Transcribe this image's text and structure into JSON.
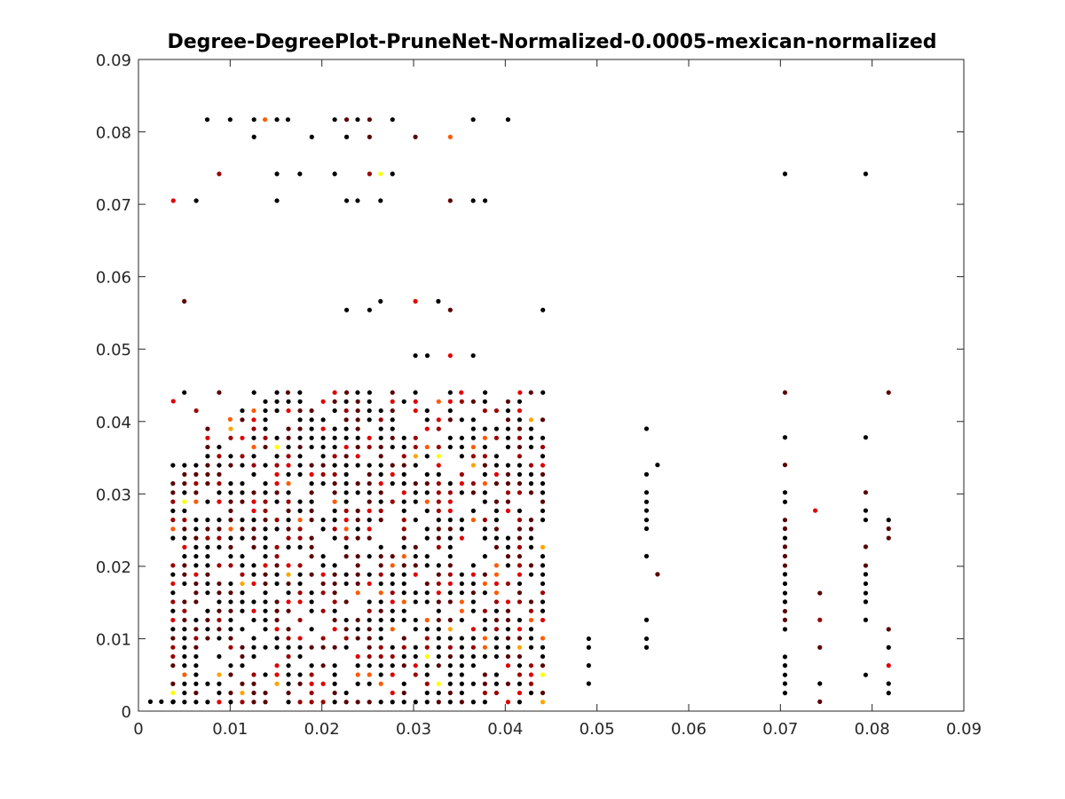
{
  "chart_data": {
    "type": "scatter",
    "title": "Degree-DegreePlot-PruneNet-Normalized-0.0005-mexican-normalized",
    "xlabel": "",
    "ylabel": "",
    "xlim": [
      0,
      0.09
    ],
    "ylim": [
      0,
      0.09
    ],
    "xticks": [
      "0",
      "0.01",
      "0.02",
      "0.03",
      "0.04",
      "0.05",
      "0.06",
      "0.07",
      "0.08",
      "0.09"
    ],
    "yticks": [
      "0",
      "0.01",
      "0.02",
      "0.03",
      "0.04",
      "0.05",
      "0.06",
      "0.07",
      "0.08",
      "0.09"
    ],
    "grid": false,
    "palette": [
      "#000000",
      "#5a0000",
      "#9a0000",
      "#e00000",
      "#ff5a00",
      "#ffa500",
      "#ffff00"
    ],
    "points": [
      [
        0.0075,
        0.0817,
        0
      ],
      [
        0.01,
        0.0817,
        0
      ],
      [
        0.0126,
        0.0817,
        0
      ],
      [
        0.0138,
        0.0817,
        4
      ],
      [
        0.0151,
        0.0817,
        0
      ],
      [
        0.0163,
        0.0817,
        0
      ],
      [
        0.0214,
        0.0817,
        0
      ],
      [
        0.0227,
        0.0817,
        1
      ],
      [
        0.0239,
        0.0817,
        0
      ],
      [
        0.0252,
        0.0817,
        1
      ],
      [
        0.0277,
        0.0817,
        0
      ],
      [
        0.0365,
        0.0817,
        0
      ],
      [
        0.0403,
        0.0817,
        0
      ],
      [
        0.0126,
        0.0793,
        0
      ],
      [
        0.0189,
        0.0793,
        0
      ],
      [
        0.0227,
        0.0793,
        0
      ],
      [
        0.0252,
        0.0793,
        1
      ],
      [
        0.0302,
        0.0793,
        1
      ],
      [
        0.034,
        0.0793,
        4
      ],
      [
        0.0088,
        0.0742,
        2
      ],
      [
        0.0151,
        0.0742,
        0
      ],
      [
        0.0176,
        0.0742,
        0
      ],
      [
        0.0214,
        0.0742,
        0
      ],
      [
        0.0252,
        0.0742,
        2
      ],
      [
        0.0264,
        0.0742,
        6
      ],
      [
        0.0277,
        0.0742,
        0
      ],
      [
        0.0705,
        0.0742,
        0
      ],
      [
        0.0793,
        0.0742,
        0
      ],
      [
        0.0038,
        0.0705,
        3
      ],
      [
        0.0063,
        0.0705,
        0
      ],
      [
        0.0151,
        0.0705,
        0
      ],
      [
        0.0227,
        0.0705,
        0
      ],
      [
        0.0239,
        0.0705,
        0
      ],
      [
        0.0264,
        0.0705,
        0
      ],
      [
        0.034,
        0.0705,
        1
      ],
      [
        0.0365,
        0.0705,
        0
      ],
      [
        0.0378,
        0.0705,
        0
      ],
      [
        0.005,
        0.0566,
        1
      ],
      [
        0.0227,
        0.0554,
        0
      ],
      [
        0.0252,
        0.0554,
        0
      ],
      [
        0.0264,
        0.0566,
        0
      ],
      [
        0.0302,
        0.0566,
        3
      ],
      [
        0.0327,
        0.0566,
        0
      ],
      [
        0.034,
        0.0554,
        1
      ],
      [
        0.0441,
        0.0554,
        0
      ],
      [
        0.0302,
        0.0491,
        0
      ],
      [
        0.0315,
        0.0491,
        0
      ],
      [
        0.034,
        0.0491,
        3
      ],
      [
        0.0365,
        0.0491,
        0
      ],
      [
        0.005,
        0.044,
        0
      ],
      [
        0.0088,
        0.044,
        1
      ],
      [
        0.0126,
        0.044,
        0
      ],
      [
        0.0151,
        0.044,
        0
      ],
      [
        0.0163,
        0.044,
        1
      ],
      [
        0.0176,
        0.044,
        0
      ],
      [
        0.0214,
        0.044,
        3
      ],
      [
        0.0227,
        0.044,
        1
      ],
      [
        0.0239,
        0.044,
        0
      ],
      [
        0.0252,
        0.044,
        0
      ],
      [
        0.0277,
        0.044,
        1
      ],
      [
        0.0302,
        0.044,
        0
      ],
      [
        0.034,
        0.044,
        0
      ],
      [
        0.0352,
        0.044,
        3
      ],
      [
        0.0378,
        0.044,
        0
      ],
      [
        0.0416,
        0.044,
        3
      ],
      [
        0.0428,
        0.044,
        1
      ],
      [
        0.0441,
        0.044,
        0
      ],
      [
        0.0705,
        0.044,
        1
      ],
      [
        0.0818,
        0.044,
        1
      ],
      [
        0.0038,
        0.0428,
        3
      ],
      [
        0.0063,
        0.0415,
        2
      ],
      [
        0.01,
        0.0403,
        4
      ],
      [
        0.0738,
        0.0277,
        3
      ],
      [
        0.0743,
        0.0163,
        1
      ],
      [
        0.0743,
        0.0126,
        2
      ],
      [
        0.0743,
        0.0088,
        1
      ],
      [
        0.0743,
        0.0038,
        0
      ],
      [
        0.0743,
        0.0013,
        1
      ],
      [
        0.0554,
        0.039,
        0
      ],
      [
        0.0554,
        0.0327,
        0
      ],
      [
        0.0554,
        0.0302,
        0
      ],
      [
        0.0554,
        0.0289,
        0
      ],
      [
        0.0554,
        0.0277,
        0
      ],
      [
        0.0554,
        0.0264,
        0
      ],
      [
        0.0554,
        0.0252,
        0
      ],
      [
        0.0554,
        0.0214,
        0
      ],
      [
        0.0566,
        0.0189,
        1
      ],
      [
        0.0566,
        0.034,
        0
      ],
      [
        0.0554,
        0.0126,
        0
      ],
      [
        0.0554,
        0.01,
        0
      ],
      [
        0.0554,
        0.0088,
        0
      ],
      [
        0.0491,
        0.01,
        0
      ],
      [
        0.0491,
        0.0088,
        0
      ],
      [
        0.0491,
        0.0063,
        0
      ],
      [
        0.0491,
        0.0038,
        0
      ],
      [
        0.0705,
        0.0378,
        0
      ],
      [
        0.0705,
        0.034,
        1
      ],
      [
        0.0705,
        0.0302,
        0
      ],
      [
        0.0705,
        0.0289,
        0
      ],
      [
        0.0705,
        0.0264,
        1
      ],
      [
        0.0705,
        0.0252,
        1
      ],
      [
        0.0705,
        0.0239,
        0
      ],
      [
        0.0705,
        0.0227,
        1
      ],
      [
        0.0705,
        0.0214,
        1
      ],
      [
        0.0705,
        0.0201,
        1
      ],
      [
        0.0705,
        0.0189,
        0
      ],
      [
        0.0705,
        0.0176,
        0
      ],
      [
        0.0705,
        0.0163,
        0
      ],
      [
        0.0705,
        0.0151,
        0
      ],
      [
        0.0705,
        0.0138,
        1
      ],
      [
        0.0705,
        0.0126,
        1
      ],
      [
        0.0705,
        0.0113,
        0
      ],
      [
        0.0705,
        0.0075,
        0
      ],
      [
        0.0705,
        0.0063,
        0
      ],
      [
        0.0705,
        0.005,
        0
      ],
      [
        0.0705,
        0.0038,
        0
      ],
      [
        0.0705,
        0.0025,
        0
      ],
      [
        0.0793,
        0.0378,
        0
      ],
      [
        0.0793,
        0.0302,
        1
      ],
      [
        0.0793,
        0.0277,
        0
      ],
      [
        0.0793,
        0.0264,
        0
      ],
      [
        0.0793,
        0.0227,
        1
      ],
      [
        0.0793,
        0.0201,
        1
      ],
      [
        0.0793,
        0.0189,
        0
      ],
      [
        0.0793,
        0.0176,
        0
      ],
      [
        0.0793,
        0.0163,
        0
      ],
      [
        0.0793,
        0.0151,
        0
      ],
      [
        0.0793,
        0.0126,
        0
      ],
      [
        0.0793,
        0.005,
        0
      ],
      [
        0.0818,
        0.0264,
        0
      ],
      [
        0.0818,
        0.0252,
        1
      ],
      [
        0.0818,
        0.0239,
        1
      ],
      [
        0.0818,
        0.0113,
        1
      ],
      [
        0.0818,
        0.0088,
        0
      ],
      [
        0.0818,
        0.0063,
        3
      ],
      [
        0.0818,
        0.0038,
        0
      ],
      [
        0.0818,
        0.0025,
        0
      ]
    ]
  }
}
